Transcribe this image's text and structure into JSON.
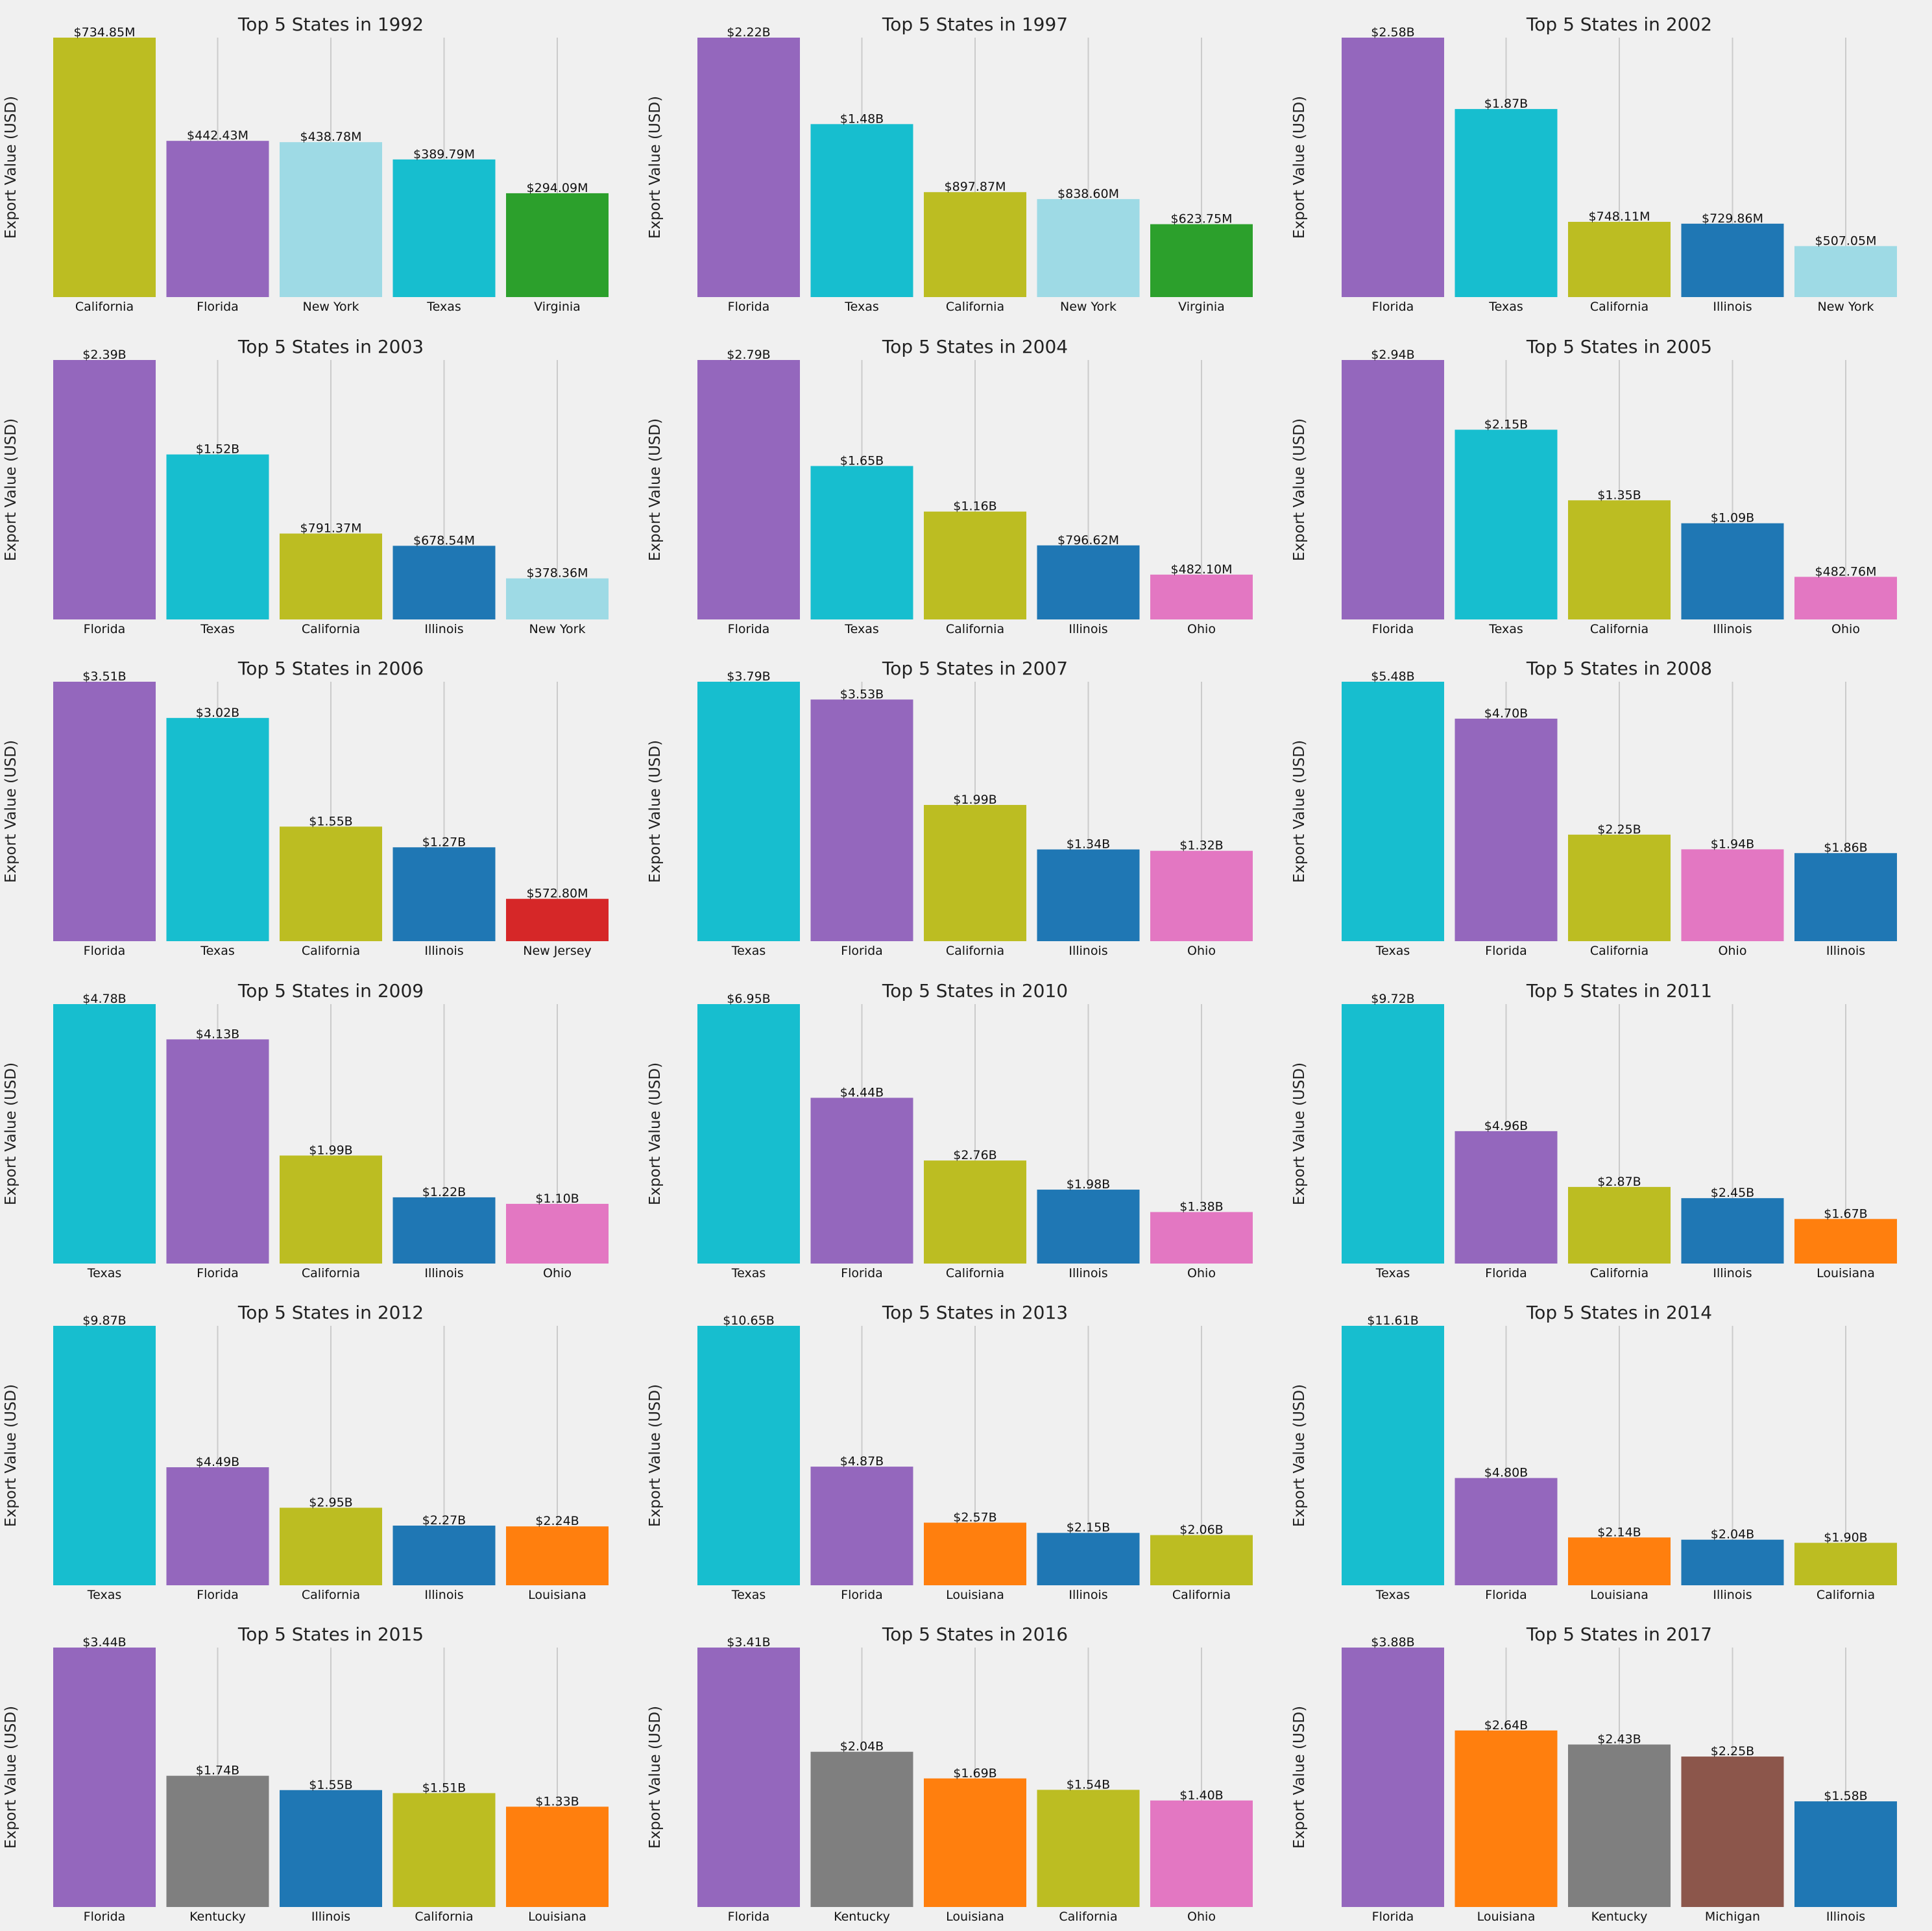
{
  "chart_data": [
    {
      "type": "bar",
      "title": "Top 5 States in 1992",
      "ylabel": "Export Value (USD)",
      "categories": [
        "California",
        "Florida",
        "New York",
        "Texas",
        "Virginia"
      ],
      "values": [
        734850000,
        442430000,
        438780000,
        389790000,
        294090000
      ],
      "value_labels": [
        "$734.85M",
        "$442.43M",
        "$438.78M",
        "$389.79M",
        "$294.09M"
      ],
      "colors": [
        "#bcbd22",
        "#9467bd",
        "#9edae5",
        "#17becf",
        "#2ca02c"
      ]
    },
    {
      "type": "bar",
      "title": "Top 5 States in 1997",
      "ylabel": "Export Value (USD)",
      "categories": [
        "Florida",
        "Texas",
        "California",
        "New York",
        "Virginia"
      ],
      "values": [
        2220000000,
        1480000000,
        897870000,
        838600000,
        623750000
      ],
      "value_labels": [
        "$2.22B",
        "$1.48B",
        "$897.87M",
        "$838.60M",
        "$623.75M"
      ],
      "colors": [
        "#9467bd",
        "#17becf",
        "#bcbd22",
        "#9edae5",
        "#2ca02c"
      ]
    },
    {
      "type": "bar",
      "title": "Top 5 States in 2002",
      "ylabel": "Export Value (USD)",
      "categories": [
        "Florida",
        "Texas",
        "California",
        "Illinois",
        "New York"
      ],
      "values": [
        2580000000,
        1870000000,
        748110000,
        729860000,
        507050000
      ],
      "value_labels": [
        "$2.58B",
        "$1.87B",
        "$748.11M",
        "$729.86M",
        "$507.05M"
      ],
      "colors": [
        "#9467bd",
        "#17becf",
        "#bcbd22",
        "#1f77b4",
        "#9edae5"
      ]
    },
    {
      "type": "bar",
      "title": "Top 5 States in 2003",
      "ylabel": "Export Value (USD)",
      "categories": [
        "Florida",
        "Texas",
        "California",
        "Illinois",
        "New York"
      ],
      "values": [
        2390000000,
        1520000000,
        791370000,
        678540000,
        378360000
      ],
      "value_labels": [
        "$2.39B",
        "$1.52B",
        "$791.37M",
        "$678.54M",
        "$378.36M"
      ],
      "colors": [
        "#9467bd",
        "#17becf",
        "#bcbd22",
        "#1f77b4",
        "#9edae5"
      ]
    },
    {
      "type": "bar",
      "title": "Top 5 States in 2004",
      "ylabel": "Export Value (USD)",
      "categories": [
        "Florida",
        "Texas",
        "California",
        "Illinois",
        "Ohio"
      ],
      "values": [
        2790000000,
        1650000000,
        1160000000,
        796620000,
        482100000
      ],
      "value_labels": [
        "$2.79B",
        "$1.65B",
        "$1.16B",
        "$796.62M",
        "$482.10M"
      ],
      "colors": [
        "#9467bd",
        "#17becf",
        "#bcbd22",
        "#1f77b4",
        "#e377c2"
      ]
    },
    {
      "type": "bar",
      "title": "Top 5 States in 2005",
      "ylabel": "Export Value (USD)",
      "categories": [
        "Florida",
        "Texas",
        "California",
        "Illinois",
        "Ohio"
      ],
      "values": [
        2940000000,
        2150000000,
        1350000000,
        1090000000,
        482760000
      ],
      "value_labels": [
        "$2.94B",
        "$2.15B",
        "$1.35B",
        "$1.09B",
        "$482.76M"
      ],
      "colors": [
        "#9467bd",
        "#17becf",
        "#bcbd22",
        "#1f77b4",
        "#e377c2"
      ]
    },
    {
      "type": "bar",
      "title": "Top 5 States in 2006",
      "ylabel": "Export Value (USD)",
      "categories": [
        "Florida",
        "Texas",
        "California",
        "Illinois",
        "New Jersey"
      ],
      "values": [
        3510000000,
        3020000000,
        1550000000,
        1270000000,
        572800000
      ],
      "value_labels": [
        "$3.51B",
        "$3.02B",
        "$1.55B",
        "$1.27B",
        "$572.80M"
      ],
      "colors": [
        "#9467bd",
        "#17becf",
        "#bcbd22",
        "#1f77b4",
        "#d62728"
      ]
    },
    {
      "type": "bar",
      "title": "Top 5 States in 2007",
      "ylabel": "Export Value (USD)",
      "categories": [
        "Texas",
        "Florida",
        "California",
        "Illinois",
        "Ohio"
      ],
      "values": [
        3790000000,
        3530000000,
        1990000000,
        1340000000,
        1320000000
      ],
      "value_labels": [
        "$3.79B",
        "$3.53B",
        "$1.99B",
        "$1.34B",
        "$1.32B"
      ],
      "colors": [
        "#17becf",
        "#9467bd",
        "#bcbd22",
        "#1f77b4",
        "#e377c2"
      ]
    },
    {
      "type": "bar",
      "title": "Top 5 States in 2008",
      "ylabel": "Export Value (USD)",
      "categories": [
        "Texas",
        "Florida",
        "California",
        "Ohio",
        "Illinois"
      ],
      "values": [
        5480000000,
        4700000000,
        2250000000,
        1940000000,
        1860000000
      ],
      "value_labels": [
        "$5.48B",
        "$4.70B",
        "$2.25B",
        "$1.94B",
        "$1.86B"
      ],
      "colors": [
        "#17becf",
        "#9467bd",
        "#bcbd22",
        "#e377c2",
        "#1f77b4"
      ]
    },
    {
      "type": "bar",
      "title": "Top 5 States in 2009",
      "ylabel": "Export Value (USD)",
      "categories": [
        "Texas",
        "Florida",
        "California",
        "Illinois",
        "Ohio"
      ],
      "values": [
        4780000000,
        4130000000,
        1990000000,
        1220000000,
        1100000000
      ],
      "value_labels": [
        "$4.78B",
        "$4.13B",
        "$1.99B",
        "$1.22B",
        "$1.10B"
      ],
      "colors": [
        "#17becf",
        "#9467bd",
        "#bcbd22",
        "#1f77b4",
        "#e377c2"
      ]
    },
    {
      "type": "bar",
      "title": "Top 5 States in 2010",
      "ylabel": "Export Value (USD)",
      "categories": [
        "Texas",
        "Florida",
        "California",
        "Illinois",
        "Ohio"
      ],
      "values": [
        6950000000,
        4440000000,
        2760000000,
        1980000000,
        1380000000
      ],
      "value_labels": [
        "$6.95B",
        "$4.44B",
        "$2.76B",
        "$1.98B",
        "$1.38B"
      ],
      "colors": [
        "#17becf",
        "#9467bd",
        "#bcbd22",
        "#1f77b4",
        "#e377c2"
      ]
    },
    {
      "type": "bar",
      "title": "Top 5 States in 2011",
      "ylabel": "Export Value (USD)",
      "categories": [
        "Texas",
        "Florida",
        "California",
        "Illinois",
        "Louisiana"
      ],
      "values": [
        9720000000,
        4960000000,
        2870000000,
        2450000000,
        1670000000
      ],
      "value_labels": [
        "$9.72B",
        "$4.96B",
        "$2.87B",
        "$2.45B",
        "$1.67B"
      ],
      "colors": [
        "#17becf",
        "#9467bd",
        "#bcbd22",
        "#1f77b4",
        "#ff7f0e"
      ]
    },
    {
      "type": "bar",
      "title": "Top 5 States in 2012",
      "ylabel": "Export Value (USD)",
      "categories": [
        "Texas",
        "Florida",
        "California",
        "Illinois",
        "Louisiana"
      ],
      "values": [
        9870000000,
        4490000000,
        2950000000,
        2270000000,
        2240000000
      ],
      "value_labels": [
        "$9.87B",
        "$4.49B",
        "$2.95B",
        "$2.27B",
        "$2.24B"
      ],
      "colors": [
        "#17becf",
        "#9467bd",
        "#bcbd22",
        "#1f77b4",
        "#ff7f0e"
      ]
    },
    {
      "type": "bar",
      "title": "Top 5 States in 2013",
      "ylabel": "Export Value (USD)",
      "categories": [
        "Texas",
        "Florida",
        "Louisiana",
        "Illinois",
        "California"
      ],
      "values": [
        10650000000,
        4870000000,
        2570000000,
        2150000000,
        2060000000
      ],
      "value_labels": [
        "$10.65B",
        "$4.87B",
        "$2.57B",
        "$2.15B",
        "$2.06B"
      ],
      "colors": [
        "#17becf",
        "#9467bd",
        "#ff7f0e",
        "#1f77b4",
        "#bcbd22"
      ]
    },
    {
      "type": "bar",
      "title": "Top 5 States in 2014",
      "ylabel": "Export Value (USD)",
      "categories": [
        "Texas",
        "Florida",
        "Louisiana",
        "Illinois",
        "California"
      ],
      "values": [
        11610000000,
        4800000000,
        2140000000,
        2040000000,
        1900000000
      ],
      "value_labels": [
        "$11.61B",
        "$4.80B",
        "$2.14B",
        "$2.04B",
        "$1.90B"
      ],
      "colors": [
        "#17becf",
        "#9467bd",
        "#ff7f0e",
        "#1f77b4",
        "#bcbd22"
      ]
    },
    {
      "type": "bar",
      "title": "Top 5 States in 2015",
      "ylabel": "Export Value (USD)",
      "categories": [
        "Florida",
        "Kentucky",
        "Illinois",
        "California",
        "Louisiana"
      ],
      "values": [
        3440000000,
        1740000000,
        1550000000,
        1510000000,
        1330000000
      ],
      "value_labels": [
        "$3.44B",
        "$1.74B",
        "$1.55B",
        "$1.51B",
        "$1.33B"
      ],
      "colors": [
        "#9467bd",
        "#7f7f7f",
        "#1f77b4",
        "#bcbd22",
        "#ff7f0e"
      ]
    },
    {
      "type": "bar",
      "title": "Top 5 States in 2016",
      "ylabel": "Export Value (USD)",
      "categories": [
        "Florida",
        "Kentucky",
        "Louisiana",
        "California",
        "Ohio"
      ],
      "values": [
        3410000000,
        2040000000,
        1690000000,
        1540000000,
        1400000000
      ],
      "value_labels": [
        "$3.41B",
        "$2.04B",
        "$1.69B",
        "$1.54B",
        "$1.40B"
      ],
      "colors": [
        "#9467bd",
        "#7f7f7f",
        "#ff7f0e",
        "#bcbd22",
        "#e377c2"
      ]
    },
    {
      "type": "bar",
      "title": "Top 5 States in 2017",
      "ylabel": "Export Value (USD)",
      "categories": [
        "Florida",
        "Louisiana",
        "Kentucky",
        "Michigan",
        "Illinois"
      ],
      "values": [
        3880000000,
        2640000000,
        2430000000,
        2250000000,
        1580000000
      ],
      "value_labels": [
        "$3.88B",
        "$2.64B",
        "$2.43B",
        "$2.25B",
        "$1.58B"
      ],
      "colors": [
        "#9467bd",
        "#ff7f0e",
        "#7f7f7f",
        "#8c564b",
        "#1f77b4"
      ]
    }
  ]
}
